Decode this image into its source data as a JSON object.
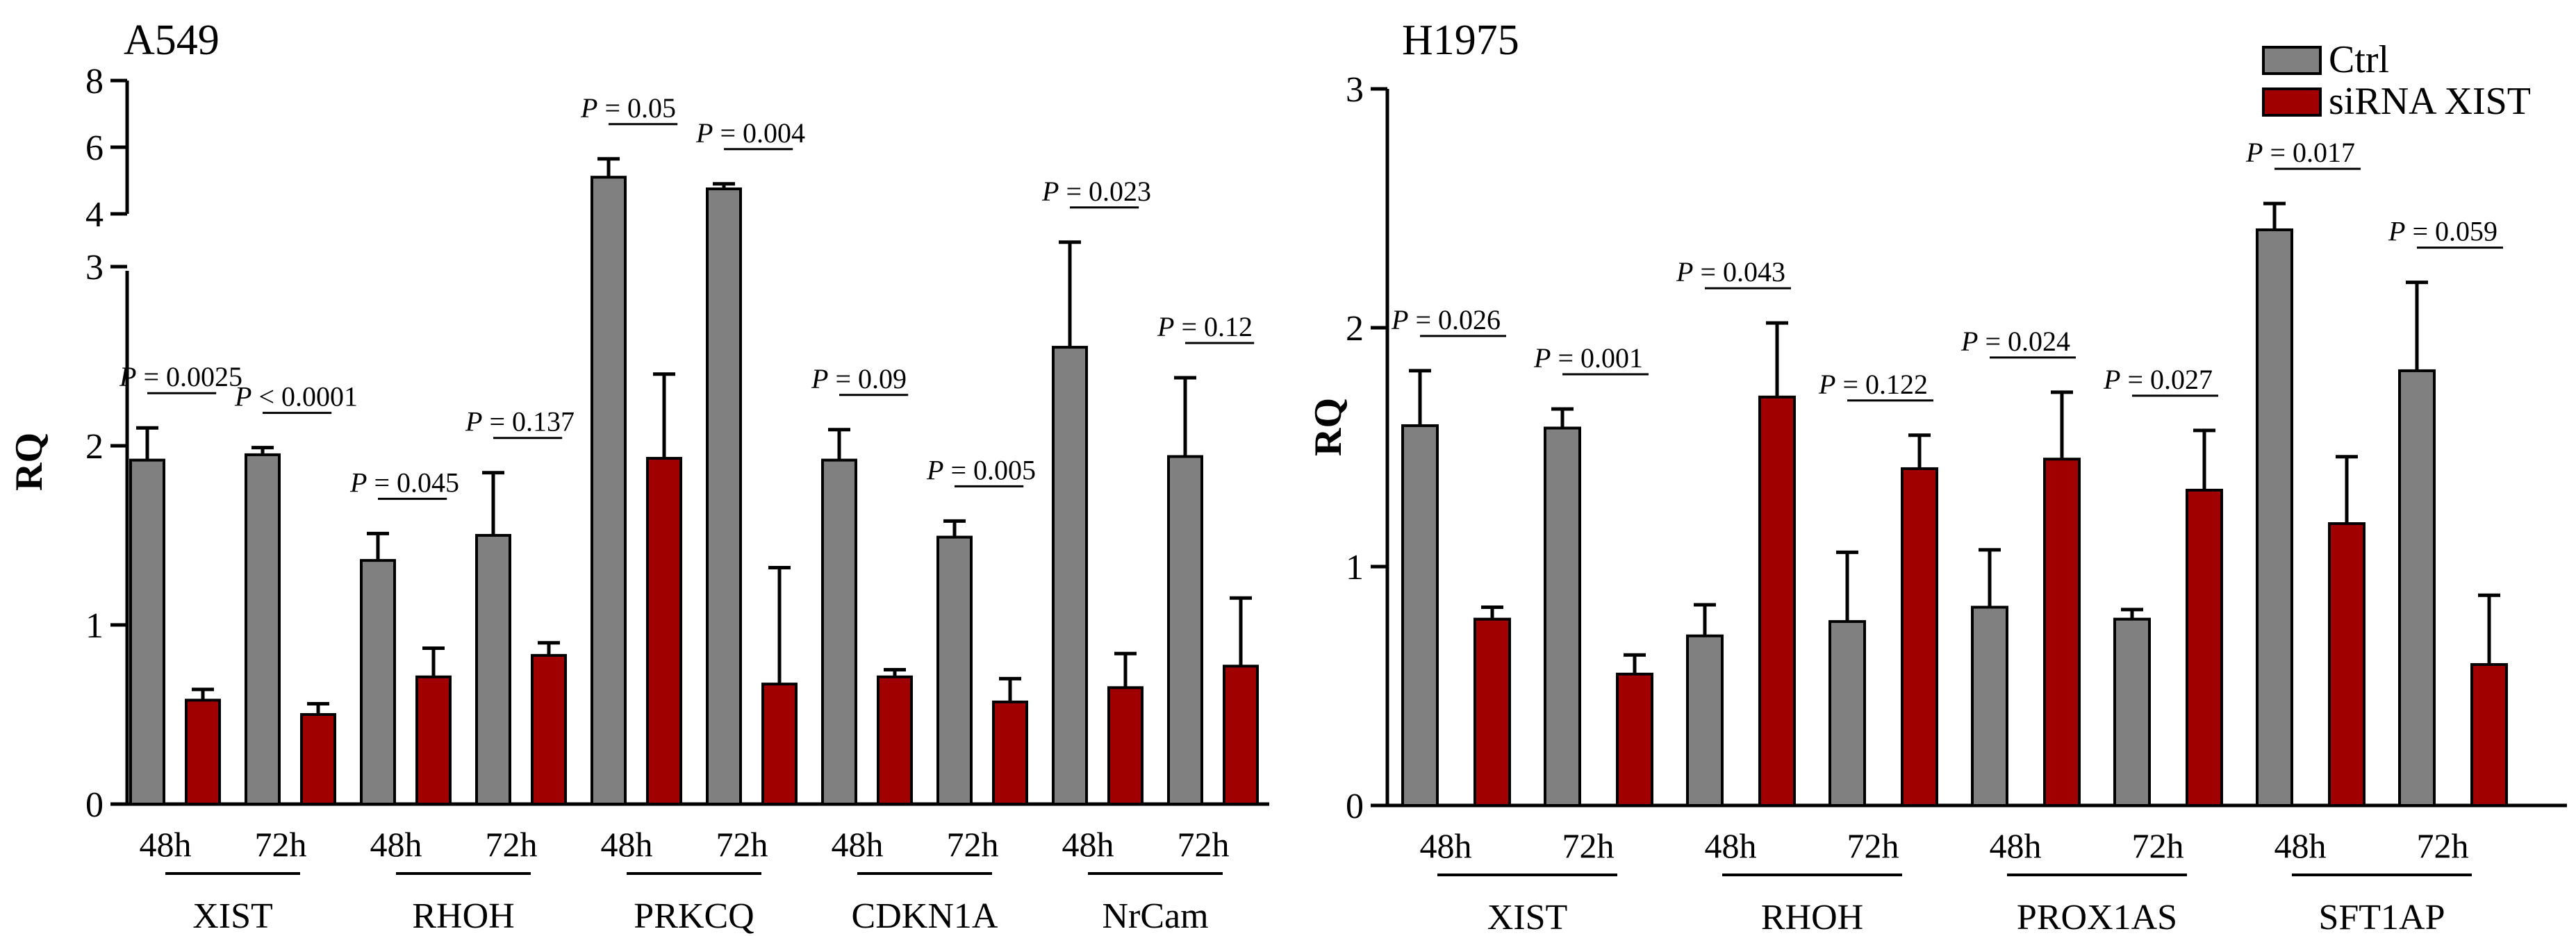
{
  "chart_data": [
    {
      "type": "bar",
      "title": "A549",
      "ylabel": "RQ",
      "xlabel": "",
      "ylim": [
        0,
        8
      ],
      "axis_break": {
        "lower_range": [
          0,
          3
        ],
        "upper_range": [
          4,
          8
        ]
      },
      "yticks_lower": [
        "0",
        "1",
        "2",
        "3"
      ],
      "yticks_upper": [
        "4",
        "6",
        "8"
      ],
      "groups": [
        {
          "gene": "XIST",
          "times": [
            {
              "time": "48h",
              "ctrl": 1.92,
              "ctrl_err": 0.18,
              "sirna": 0.58,
              "sirna_err": 0.06,
              "p": "P = 0.0025"
            },
            {
              "time": "72h",
              "ctrl": 1.95,
              "ctrl_err": 0.04,
              "sirna": 0.5,
              "sirna_err": 0.06,
              "p": "P < 0.0001"
            }
          ]
        },
        {
          "gene": "RHOH",
          "times": [
            {
              "time": "48h",
              "ctrl": 1.36,
              "ctrl_err": 0.15,
              "sirna": 0.71,
              "sirna_err": 0.16,
              "p": "P = 0.045"
            },
            {
              "time": "72h",
              "ctrl": 1.5,
              "ctrl_err": 0.35,
              "sirna": 0.83,
              "sirna_err": 0.07,
              "p": "P = 0.137"
            }
          ]
        },
        {
          "gene": "PRKCQ",
          "times": [
            {
              "time": "48h",
              "ctrl": 5.1,
              "ctrl_err": 0.55,
              "sirna": 1.93,
              "sirna_err": 0.47,
              "p": "P = 0.05"
            },
            {
              "time": "72h",
              "ctrl": 4.75,
              "ctrl_err": 0.15,
              "sirna": 0.67,
              "sirna_err": 0.65,
              "p": "P = 0.004"
            }
          ]
        },
        {
          "gene": "CDKN1A",
          "times": [
            {
              "time": "48h",
              "ctrl": 1.92,
              "ctrl_err": 0.17,
              "sirna": 0.71,
              "sirna_err": 0.04,
              "p": "P = 0.09"
            },
            {
              "time": "72h",
              "ctrl": 1.49,
              "ctrl_err": 0.09,
              "sirna": 0.57,
              "sirna_err": 0.13,
              "p": "P = 0.005"
            }
          ]
        },
        {
          "gene": "NrCam",
          "times": [
            {
              "time": "48h",
              "ctrl": 2.55,
              "ctrl_err": 0.6,
              "sirna": 0.65,
              "sirna_err": 0.19,
              "p": "P = 0.023"
            },
            {
              "time": "72h",
              "ctrl": 1.94,
              "ctrl_err": 0.44,
              "sirna": 0.77,
              "sirna_err": 0.38,
              "p": "P = 0.12"
            }
          ]
        }
      ]
    },
    {
      "type": "bar",
      "title": "H1975",
      "ylabel": "RQ",
      "xlabel": "",
      "ylim": [
        0,
        3
      ],
      "yticks": [
        "0",
        "1",
        "2",
        "3"
      ],
      "legend": {
        "position": "top-right",
        "entries": [
          "Ctrl",
          "siRNA XIST"
        ]
      },
      "groups": [
        {
          "gene": "XIST",
          "times": [
            {
              "time": "48h",
              "ctrl": 1.59,
              "ctrl_err": 0.23,
              "sirna": 0.78,
              "sirna_err": 0.05,
              "p": "P = 0.026"
            },
            {
              "time": "72h",
              "ctrl": 1.58,
              "ctrl_err": 0.08,
              "sirna": 0.55,
              "sirna_err": 0.08,
              "p": "P = 0.001"
            }
          ]
        },
        {
          "gene": "RHOH",
          "times": [
            {
              "time": "48h",
              "ctrl": 0.71,
              "ctrl_err": 0.13,
              "sirna": 1.71,
              "sirna_err": 0.31,
              "p": "P = 0.043"
            },
            {
              "time": "72h",
              "ctrl": 0.77,
              "ctrl_err": 0.29,
              "sirna": 1.41,
              "sirna_err": 0.14,
              "p": "P = 0.122"
            }
          ]
        },
        {
          "gene": "PROX1AS",
          "times": [
            {
              "time": "48h",
              "ctrl": 0.83,
              "ctrl_err": 0.24,
              "sirna": 1.45,
              "sirna_err": 0.28,
              "p": "P = 0.024"
            },
            {
              "time": "72h",
              "ctrl": 0.78,
              "ctrl_err": 0.04,
              "sirna": 1.32,
              "sirna_err": 0.25,
              "p": "P = 0.027"
            }
          ]
        },
        {
          "gene": "SFT1AP",
          "times": [
            {
              "time": "48h",
              "ctrl": 2.41,
              "ctrl_err": 0.11,
              "sirna": 1.18,
              "sirna_err": 0.28,
              "p": "P = 0.017"
            },
            {
              "time": "72h",
              "ctrl": 1.82,
              "ctrl_err": 0.37,
              "sirna": 0.59,
              "sirna_err": 0.29,
              "p": "P = 0.059"
            }
          ]
        }
      ]
    }
  ],
  "colors": {
    "ctrl": "#808080",
    "sirna": "#a00000",
    "axis": "#000000"
  }
}
